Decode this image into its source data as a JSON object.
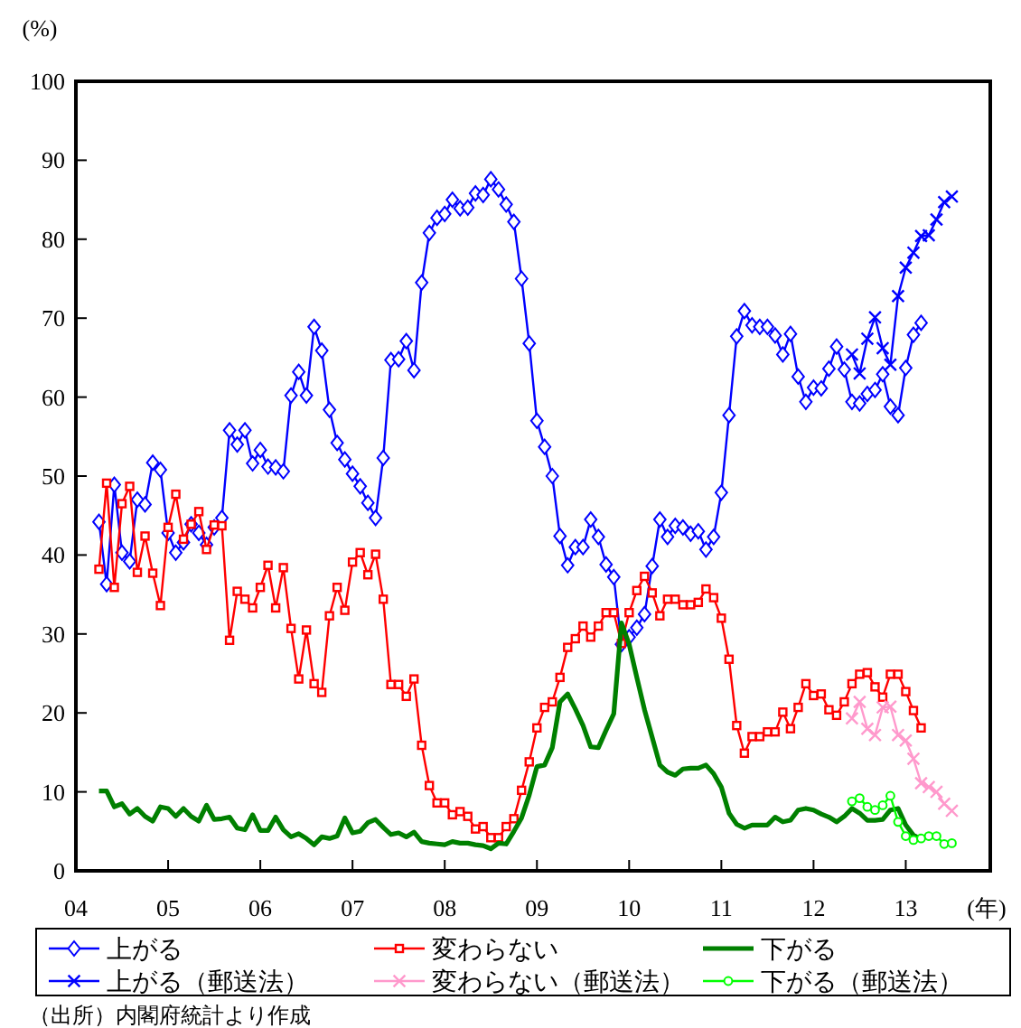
{
  "chart_data": {
    "type": "line",
    "ylabel": "(%)",
    "xlabel": "(年)",
    "xlim": [
      "2004-01",
      "2013-12"
    ],
    "ylim": [
      0,
      100
    ],
    "xticks": [
      {
        "value": "2004-01",
        "label": "04"
      },
      {
        "value": "2005-01",
        "label": "05"
      },
      {
        "value": "2006-01",
        "label": "06"
      },
      {
        "value": "2007-01",
        "label": "07"
      },
      {
        "value": "2008-01",
        "label": "08"
      },
      {
        "value": "2009-01",
        "label": "09"
      },
      {
        "value": "2010-01",
        "label": "10"
      },
      {
        "value": "2011-01",
        "label": "11"
      },
      {
        "value": "2012-01",
        "label": "12"
      },
      {
        "value": "2013-01",
        "label": "13"
      }
    ],
    "yticks": [
      0,
      10,
      20,
      30,
      40,
      50,
      60,
      70,
      80,
      90,
      100
    ],
    "legend": "bottom",
    "x": [
      "2004-04",
      "2004-05",
      "2004-06",
      "2004-07",
      "2004-08",
      "2004-09",
      "2004-10",
      "2004-11",
      "2004-12",
      "2005-01",
      "2005-02",
      "2005-03",
      "2005-04",
      "2005-05",
      "2005-06",
      "2005-07",
      "2005-08",
      "2005-09",
      "2005-10",
      "2005-11",
      "2005-12",
      "2006-01",
      "2006-02",
      "2006-03",
      "2006-04",
      "2006-05",
      "2006-06",
      "2006-07",
      "2006-08",
      "2006-09",
      "2006-10",
      "2006-11",
      "2006-12",
      "2007-01",
      "2007-02",
      "2007-03",
      "2007-04",
      "2007-05",
      "2007-06",
      "2007-07",
      "2007-08",
      "2007-09",
      "2007-10",
      "2007-11",
      "2007-12",
      "2008-01",
      "2008-02",
      "2008-03",
      "2008-04",
      "2008-05",
      "2008-06",
      "2008-07",
      "2008-08",
      "2008-09",
      "2008-10",
      "2008-11",
      "2008-12",
      "2009-01",
      "2009-02",
      "2009-03",
      "2009-04",
      "2009-05",
      "2009-06",
      "2009-07",
      "2009-08",
      "2009-09",
      "2009-10",
      "2009-11",
      "2009-12",
      "2010-01",
      "2010-02",
      "2010-03",
      "2010-04",
      "2010-05",
      "2010-06",
      "2010-07",
      "2010-08",
      "2010-09",
      "2010-10",
      "2010-11",
      "2010-12",
      "2011-01",
      "2011-02",
      "2011-03",
      "2011-04",
      "2011-05",
      "2011-06",
      "2011-07",
      "2011-08",
      "2011-09",
      "2011-10",
      "2011-11",
      "2011-12",
      "2012-01",
      "2012-02",
      "2012-03",
      "2012-04",
      "2012-05",
      "2012-06",
      "2012-07",
      "2012-08",
      "2012-09",
      "2012-10",
      "2012-11",
      "2012-12",
      "2013-01",
      "2013-02",
      "2013-03"
    ],
    "annotations": [
      "（出所）内閣府統計より作成"
    ],
    "series": [
      {
        "name": "上がる",
        "color": "#0000ff",
        "marker": "diamond",
        "values": [
          44.2,
          36.3,
          48.9,
          40.3,
          39.2,
          47,
          46.4,
          51.7,
          50.8,
          42.8,
          40.3,
          41.6,
          43.9,
          42.8,
          41.3,
          43.5,
          44.7,
          55.8,
          54,
          55.8,
          51.6,
          53.3,
          51.2,
          51.1,
          50.6,
          60.2,
          63.2,
          60.2,
          68.9,
          65.9,
          58.4,
          54.2,
          52.1,
          50.3,
          48.7,
          46.6,
          44.7,
          52.3,
          64.7,
          64.8,
          67.1,
          63.4,
          74.5,
          80.8,
          82.7,
          83.2,
          85,
          83.9,
          84,
          85.8,
          85.6,
          87.6,
          86.3,
          84.4,
          82.2,
          75,
          66.8,
          57,
          53.7,
          50,
          42.4,
          38.7,
          41,
          41,
          44.5,
          42.3,
          38.8,
          37.2,
          28.7,
          29.6,
          30.8,
          32.5,
          38.6,
          44.5,
          42.3,
          43.7,
          43.5,
          42.7,
          43,
          40.7,
          42.3,
          47.9,
          57.7,
          67.7,
          70.9,
          69.1,
          68.9,
          68.9,
          67.8,
          65.4,
          68,
          62.6,
          59.4,
          61.2,
          61.1,
          63.6,
          66.4,
          63.5,
          59.4,
          59.2,
          60.4,
          60.9,
          62.9,
          58.8,
          57.7,
          63.7,
          67.9,
          69.4
        ]
      },
      {
        "name": "変わらない",
        "color": "#ff0000",
        "marker": "square",
        "values": [
          38.2,
          49.1,
          35.9,
          46.5,
          48.7,
          37.8,
          42.4,
          37.7,
          33.6,
          43.5,
          47.7,
          42,
          43.9,
          45.5,
          40.7,
          43.8,
          43.7,
          29.2,
          35.4,
          34.4,
          33.3,
          35.9,
          38.7,
          33.3,
          38.4,
          30.7,
          24.3,
          30.5,
          23.7,
          22.6,
          32.3,
          35.9,
          33,
          39.1,
          40.3,
          37.5,
          40.1,
          34.4,
          23.6,
          23.6,
          22.1,
          24.3,
          15.9,
          10.8,
          8.6,
          8.6,
          7.1,
          7.5,
          6.9,
          5.3,
          5.6,
          4.2,
          4.2,
          5.6,
          6.6,
          10.2,
          13.8,
          18.1,
          20.7,
          21.4,
          24.5,
          28.3,
          29.4,
          31,
          29.6,
          31,
          32.7,
          32.7,
          28.8,
          32.7,
          35.5,
          37.3,
          35.2,
          32.3,
          34.4,
          34.4,
          33.7,
          33.7,
          34,
          35.7,
          34.6,
          32,
          26.8,
          18.4,
          14.9,
          17,
          17,
          17.6,
          17.6,
          20.1,
          18,
          20.7,
          23.7,
          22.2,
          22.4,
          20.4,
          19.7,
          21.4,
          23.7,
          24.9,
          25.1,
          23.3,
          22,
          24.9,
          24.9,
          22.7,
          20.3,
          18.1
        ]
      },
      {
        "name": "下がる",
        "color": "#008000",
        "marker": "none",
        "values": [
          10.1,
          10.1,
          8.1,
          8.5,
          7.2,
          7.9,
          6.9,
          6.3,
          8.1,
          7.9,
          6.9,
          7.9,
          6.9,
          6.3,
          8.3,
          6.5,
          6.6,
          6.8,
          5.4,
          5.2,
          7.1,
          5.1,
          5.1,
          6.8,
          5.2,
          4.3,
          4.7,
          4.1,
          3.3,
          4.3,
          4.1,
          4.4,
          6.7,
          4.8,
          5,
          6.1,
          6.5,
          5.5,
          4.6,
          4.8,
          4.3,
          4.9,
          3.7,
          3.5,
          3.4,
          3.3,
          3.7,
          3.5,
          3.5,
          3.3,
          3.2,
          2.8,
          3.5,
          3.4,
          5,
          6.7,
          9.6,
          13.2,
          13.4,
          15.6,
          21.4,
          22.4,
          20.5,
          18.4,
          15.7,
          15.6,
          17.8,
          19.9,
          31.4,
          28.7,
          24.5,
          20.4,
          16.9,
          13.4,
          12.5,
          12.1,
          12.9,
          13,
          13,
          13.4,
          12.3,
          10.6,
          7.3,
          5.9,
          5.4,
          5.8,
          5.8,
          5.8,
          6.8,
          6.2,
          6.4,
          7.7,
          7.9,
          7.7,
          7.2,
          6.8,
          6.2,
          6.9,
          7.9,
          7.3,
          6.4,
          6.4,
          6.5,
          7.7,
          7.9,
          5.8,
          4.5,
          4.0
        ]
      },
      {
        "name": "上がる（郵送法）",
        "color": "#0000ff",
        "marker": "cross",
        "x": [
          "2012-06",
          "2012-07",
          "2012-08",
          "2012-09",
          "2012-10",
          "2012-11",
          "2012-12",
          "2013-01",
          "2013-02",
          "2013-03",
          "2013-04",
          "2013-05",
          "2013-06",
          "2013-07"
        ],
        "values": [
          65.4,
          63,
          67.4,
          70.1,
          66.2,
          64.1,
          72.8,
          76.4,
          78.3,
          80.4,
          80.5,
          82.5,
          84.7,
          85.4
        ]
      },
      {
        "name": "変わらない（郵送法）",
        "color": "#ff99cc",
        "marker": "cross",
        "x": [
          "2012-06",
          "2012-07",
          "2012-08",
          "2012-09",
          "2012-10",
          "2012-11",
          "2012-12",
          "2013-01",
          "2013-02",
          "2013-03",
          "2013-04",
          "2013-05",
          "2013-06",
          "2013-07"
        ],
        "values": [
          19.3,
          21.4,
          18,
          17.2,
          20.7,
          20.8,
          17.2,
          16.5,
          14.2,
          11.1,
          10.6,
          10,
          8.5,
          7.6
        ]
      },
      {
        "name": "下がる（郵送法）",
        "color": "#00ff00",
        "marker": "circle",
        "x": [
          "2012-06",
          "2012-07",
          "2012-08",
          "2012-09",
          "2012-10",
          "2012-11",
          "2012-12",
          "2013-01",
          "2013-02",
          "2013-03",
          "2013-04",
          "2013-05",
          "2013-06",
          "2013-07"
        ],
        "values": [
          8.8,
          9.2,
          8.1,
          7.7,
          8.3,
          9.5,
          6.2,
          4.4,
          3.9,
          4.1,
          4.4,
          4.4,
          3.4,
          3.5
        ]
      }
    ]
  }
}
